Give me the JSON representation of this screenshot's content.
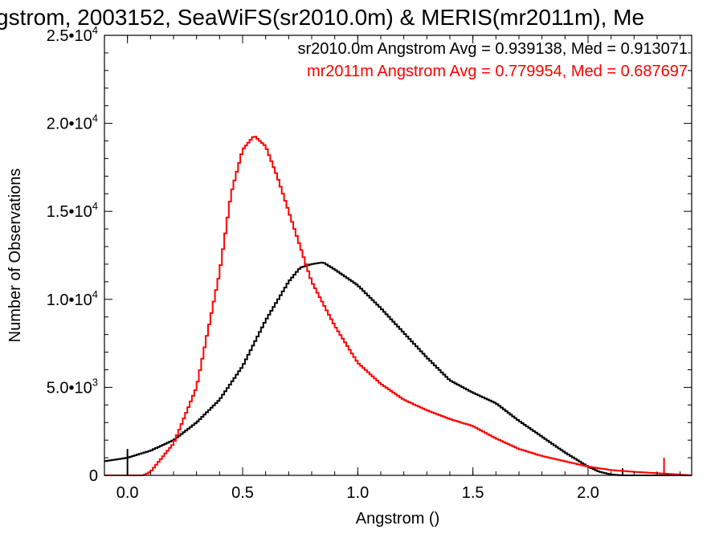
{
  "chart_data": {
    "type": "line",
    "title": "gstrom, 2003152, SeaWiFS(sr2010.0m) & MERIS(mr2011m), Me",
    "xlabel": "Angstrom ()",
    "ylabel": "Number of Observations",
    "xlim": [
      -0.1,
      2.45
    ],
    "ylim": [
      0,
      25000
    ],
    "xticks": [
      {
        "value": 0.0,
        "label": "0.0"
      },
      {
        "value": 0.5,
        "label": "0.5"
      },
      {
        "value": 1.0,
        "label": "1.0"
      },
      {
        "value": 1.5,
        "label": "1.5"
      },
      {
        "value": 2.0,
        "label": "2.0"
      }
    ],
    "yticks": [
      {
        "value": 0,
        "mant": "0",
        "exp": ""
      },
      {
        "value": 5000,
        "mant": "5.0•10",
        "exp": "3"
      },
      {
        "value": 10000,
        "mant": "1.0•10",
        "exp": "4"
      },
      {
        "value": 15000,
        "mant": "1.5•10",
        "exp": "4"
      },
      {
        "value": 20000,
        "mant": "2.0•10",
        "exp": "4"
      },
      {
        "value": 25000,
        "mant": "2.5•10",
        "exp": "4"
      }
    ],
    "legend": [
      {
        "text": "sr2010.0m Angstrom Avg = 0.939138, Med = 0.913071",
        "color": "#000000"
      },
      {
        "text": "mr2011m Angstrom Avg = 0.779954, Med = 0.687697",
        "color": "#ff0000"
      }
    ],
    "legend_position": "top-right",
    "series": [
      {
        "color": "#000000",
        "points": [
          [
            -0.1,
            800
          ],
          [
            0.0,
            1000
          ],
          [
            0.1,
            1400
          ],
          [
            0.2,
            2000
          ],
          [
            0.3,
            3000
          ],
          [
            0.4,
            4300
          ],
          [
            0.5,
            6200
          ],
          [
            0.6,
            8800
          ],
          [
            0.7,
            11000
          ],
          [
            0.75,
            11800
          ],
          [
            0.8,
            12000
          ],
          [
            0.85,
            12100
          ],
          [
            0.9,
            11700
          ],
          [
            1.0,
            10800
          ],
          [
            1.1,
            9500
          ],
          [
            1.2,
            8100
          ],
          [
            1.3,
            6700
          ],
          [
            1.4,
            5400
          ],
          [
            1.5,
            4700
          ],
          [
            1.6,
            4100
          ],
          [
            1.7,
            3100
          ],
          [
            1.8,
            2200
          ],
          [
            1.9,
            1300
          ],
          [
            2.0,
            500
          ],
          [
            2.05,
            200
          ],
          [
            2.1,
            50
          ],
          [
            2.15,
            0
          ],
          [
            2.45,
            0
          ]
        ],
        "spikes": [
          [
            0.0,
            1500
          ],
          [
            2.15,
            400
          ]
        ]
      },
      {
        "color": "#ff0000",
        "points": [
          [
            -0.1,
            0
          ],
          [
            0.07,
            0
          ],
          [
            0.1,
            200
          ],
          [
            0.2,
            1800
          ],
          [
            0.3,
            5000
          ],
          [
            0.4,
            11500
          ],
          [
            0.45,
            16000
          ],
          [
            0.5,
            18500
          ],
          [
            0.55,
            19300
          ],
          [
            0.6,
            18700
          ],
          [
            0.65,
            17000
          ],
          [
            0.7,
            15000
          ],
          [
            0.75,
            13000
          ],
          [
            0.8,
            11000
          ],
          [
            0.9,
            8500
          ],
          [
            1.0,
            6400
          ],
          [
            1.1,
            5200
          ],
          [
            1.2,
            4300
          ],
          [
            1.3,
            3700
          ],
          [
            1.4,
            3200
          ],
          [
            1.5,
            2800
          ],
          [
            1.6,
            2100
          ],
          [
            1.7,
            1500
          ],
          [
            1.8,
            1100
          ],
          [
            1.9,
            800
          ],
          [
            2.0,
            500
          ],
          [
            2.1,
            300
          ],
          [
            2.2,
            200
          ],
          [
            2.33,
            100
          ],
          [
            2.45,
            0
          ]
        ],
        "spikes": [
          [
            2.33,
            1000
          ]
        ]
      }
    ]
  }
}
